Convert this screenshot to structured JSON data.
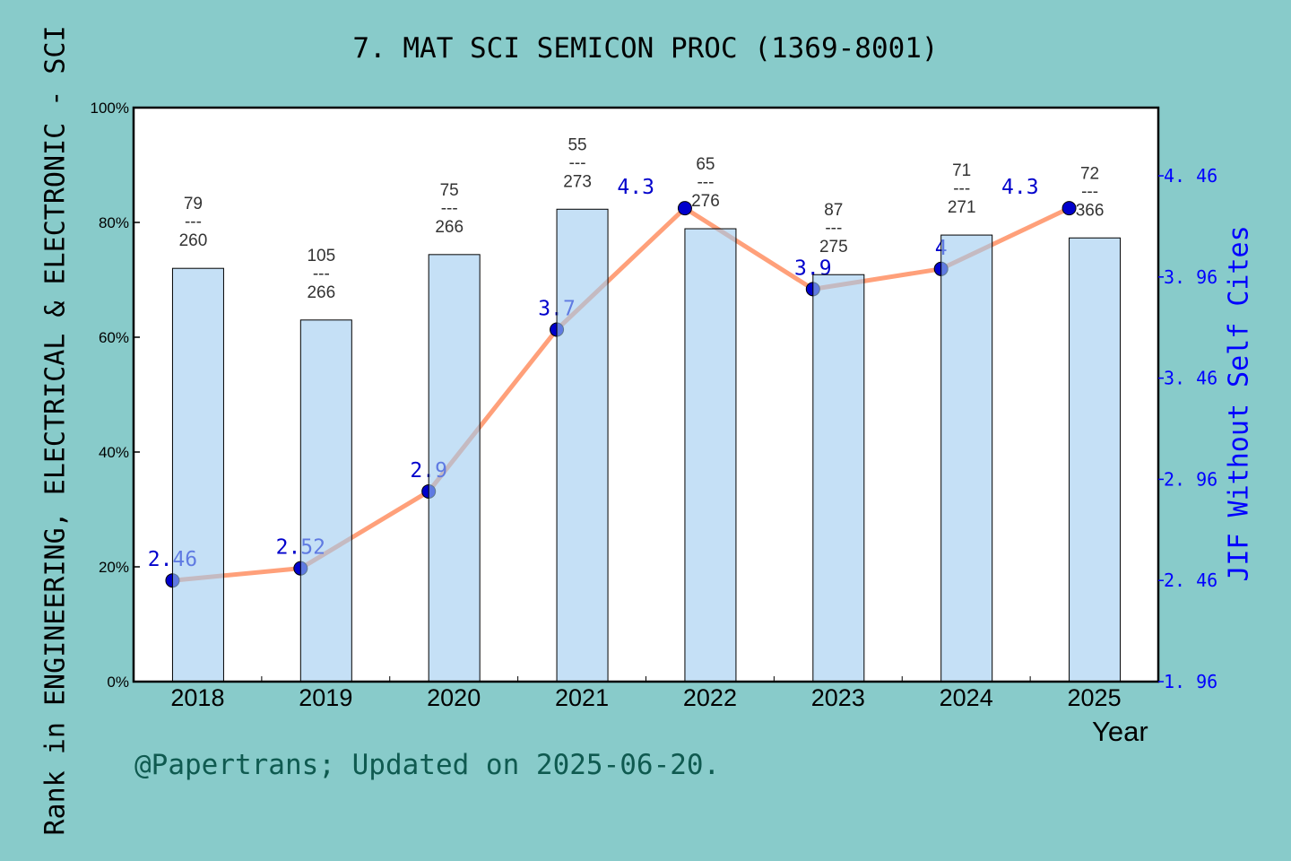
{
  "chart_data": {
    "type": "bar+line",
    "title": "7. MAT SCI SEMICON PROC (1369-8001)",
    "xlabel": "Year",
    "ylabel": "Rank in ENGINEERING, ELECTRICAL & ELECTRONIC - SCI",
    "y2label": "JIF Without Self Cites",
    "categories": [
      "2018",
      "2019",
      "2020",
      "2021",
      "2022",
      "2023",
      "2024",
      "2025"
    ],
    "bar_values_percent": [
      72.0,
      63.0,
      74.4,
      82.3,
      78.9,
      70.9,
      77.8,
      77.3
    ],
    "bar_labels": [
      {
        "rank": "79",
        "sep": "---",
        "total": "260"
      },
      {
        "rank": "105",
        "sep": "---",
        "total": "266"
      },
      {
        "rank": "75",
        "sep": "---",
        "total": "266"
      },
      {
        "rank": "55",
        "sep": "---",
        "total": "273"
      },
      {
        "rank": "65",
        "sep": "---",
        "total": "276"
      },
      {
        "rank": "87",
        "sep": "---",
        "total": "275"
      },
      {
        "rank": "71",
        "sep": "---",
        "total": "271"
      },
      {
        "rank": "72",
        "sep": "---",
        "total": "366"
      }
    ],
    "line_values": [
      2.46,
      2.52,
      2.9,
      3.7,
      4.3,
      3.9,
      4,
      4.3
    ],
    "line_labels": [
      "2.46",
      "2.52",
      "2.9",
      "3.7",
      "4.3",
      "3.9",
      "4",
      "4.3"
    ],
    "ylim": [
      0,
      100
    ],
    "y_ticks": [
      "0%",
      "20%",
      "40%",
      "60%",
      "80%",
      "100%"
    ],
    "y2lim": [
      1.96,
      4.797
    ],
    "y2_ticks": [
      "1.96",
      "2.46",
      "2.96",
      "3.46",
      "3.96",
      "4.46"
    ],
    "colors": {
      "bar": "#9ecbf0",
      "line": "#ffa07a",
      "marker": "#0000cc",
      "right_axis": "#0000ff",
      "background": "#88cbca"
    },
    "grid": false
  },
  "footer": {
    "credit": "@Papertrans; Updated on 2025-06-20."
  }
}
